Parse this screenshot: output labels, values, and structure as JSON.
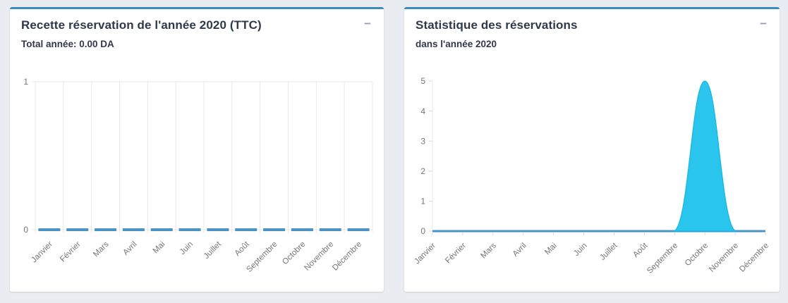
{
  "page": {
    "background": "#e9edf2"
  },
  "colors": {
    "accent": "#3c8dbc",
    "collapse_icon": "#97a0b3",
    "title_text": "#30394a",
    "axis_text": "#767676",
    "grid_line": "#e8e8e8",
    "tick_line": "#d9d9d9"
  },
  "panels": [
    {
      "title": "Recette réservation de l'année 2020 (TTC)",
      "subtitle": "Total année: 0.00 DA",
      "collapse_icon": "−"
    },
    {
      "title": "Statistique des réservations",
      "subtitle": "dans l'année 2020",
      "collapse_icon": "−"
    }
  ],
  "chart_data": [
    {
      "type": "bar",
      "title": "Recette réservation de l'année 2020 (TTC)",
      "subtitle": "Total année: 0.00 DA",
      "categories": [
        "Janvier",
        "Février",
        "Mars",
        "Avril",
        "Mai",
        "Juin",
        "Juillet",
        "Août",
        "Septembre",
        "Octobre",
        "Novembre",
        "Décembre"
      ],
      "values": [
        0,
        0,
        0,
        0,
        0,
        0,
        0,
        0,
        0,
        0,
        0,
        0
      ],
      "ylim": [
        0,
        1
      ],
      "yticks": [
        0,
        1
      ],
      "xlabel": "",
      "ylabel": "",
      "grid": true,
      "legend": false,
      "bar_color": "#4a93c4"
    },
    {
      "type": "area",
      "title": "Statistique des réservations",
      "subtitle": "dans l'année 2020",
      "categories": [
        "Janvier",
        "Février",
        "Mars",
        "Avril",
        "Mai",
        "Juin",
        "Juillet",
        "Août",
        "Septembre",
        "Octobre",
        "Novembre",
        "Décembre"
      ],
      "values": [
        0,
        0,
        0,
        0,
        0,
        0,
        0,
        0,
        0,
        5,
        0,
        0
      ],
      "ylim": [
        0,
        5
      ],
      "yticks": [
        0,
        1,
        2,
        3,
        4,
        5
      ],
      "xlabel": "",
      "ylabel": "",
      "grid": false,
      "legend": false,
      "smooth": true,
      "line_color": "#4a93c4",
      "fill_color": "#29c5ed",
      "fill_stroke": "#14b6e2"
    }
  ]
}
